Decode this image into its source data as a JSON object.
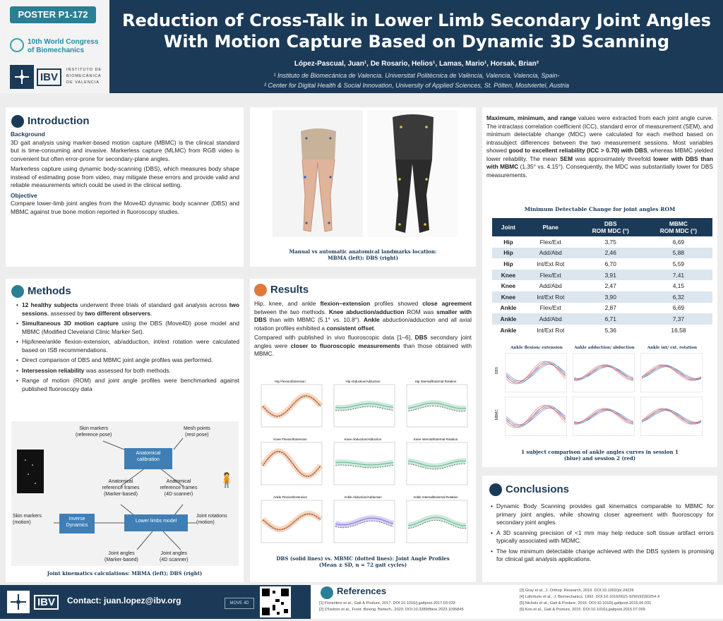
{
  "header": {
    "badge": "POSTER P1-172",
    "congress_line1": "10th World Congress",
    "congress_line2": "of Biomechanics",
    "ibv": "IBV",
    "ibv_small1": "INSTITUTO DE",
    "ibv_small2": "BIOMECÁNICA",
    "ibv_small3": "DE VALENCIA",
    "title_line1": "Reduction of Cross-Talk in Lower Limb Secondary Joint Angles",
    "title_line2": "With Motion Capture Based on Dynamic 3D Scanning",
    "authors": "López-Pascual, Juan¹, De Rosario, Helios¹, Lamas, Mario¹, Horsak, Brian²",
    "aff1": "¹ Instituto de Biomecánica de Valencia. Universitat Politècnica de València, Valencia, Valencia, Spain-",
    "aff2": "² Center for Digital Health & Social Innovation, University of Applied Sciences, St. Pölten, Mostviertel, Austria"
  },
  "intro": {
    "heading": "Introduction",
    "bg_label": "Background",
    "p1": "3D gait analysis using marker-based motion capture (MBMC) is the clinical standard but is time-consuming and invasive. Markerless capture (MLMC) from RGB video is convenient but often error-prone for secondary-plane angles.",
    "p2": "Markerless capture using dynamic body-scanning (DBS), which measures body shape instead of estimating pose from video, may mitigate these errors and provide valid and reliable measurements which could be used in the clinical setting.",
    "obj_label": "Objective",
    "p3": "Compare lower-limb joint angles from the Move4D dynamic body scanner (DBS) and MBMC against true bone motion reported in fluoroscopy studies."
  },
  "landmarks": {
    "caption1": "Manual vs automatic anatomical landmarks location:",
    "caption2": "MBMA (left); DBS (right)"
  },
  "methods": {
    "heading": "Methods",
    "b1_bold": "12 healthy subjects",
    "b1a": " underwent three trials of standard gait analysis across ",
    "b1_bold2": "two sessions",
    "b1b": ", assessed by ",
    "b1_bold3": "two different observers",
    "b1c": ".",
    "b2_bold": "Simultaneous 3D motion capture",
    "b2": " using the DBS (Move4D) pose model and MBMC (Modified Cleveland Clinic Marker Set).",
    "b3": "Hip/knee/ankle flexion-extension, ab/adduction, int/ext rotation were calculated based on ISB recommendations.",
    "b4": "Direct comparison of DBS and MBMC joint angle profiles was performed.",
    "b5_bold": "Intersession reliability",
    "b5": " was assessed for both methods.",
    "b6": "Range of motion (ROM) and joint angle profiles were benchmarked against published fluoroscopy data",
    "diag": {
      "skin_ref": "Skin markers\n(reference pose)",
      "mesh": "Mesh points\n(rest pose)",
      "anat_cal": "Anatomical\ncalibration",
      "arf_marker": "Anatomical\nreference frames\n(Marker-based)",
      "arf_scanner": "Anatomical\nreference frames\n(4D scanner)",
      "skin_motion": "Skin markers\n(motion)",
      "inverse": "Inverse\nDynamics",
      "lower_limb": "Lower limbs model",
      "joint_rot": "Joint rotations\n(motion)",
      "ja_marker": "Joint angles\n(Marker-based)",
      "ja_scanner": "Joint angles\n(4D scanner)"
    },
    "caption": "Joint kinematics calculations: MBMA (left); DBS (right)"
  },
  "results": {
    "heading": "Results",
    "t1": "Hip, knee, and ankle ",
    "t1b": "flexion–extension",
    "t1c": " profiles showed ",
    "t1d": "close agreement",
    "t1e": " between the two methods. ",
    "t1f": "Knee abduction/adduction",
    "t1g": " ROM was ",
    "t1h": "smaller with DBS",
    "t1i": " than with MBMC (5.1° vs. 10.8°). ",
    "t1j": "Ankle",
    "t1k": " abduction/adduction and all axial rotation profiles exhibited a ",
    "t1l": "consistent offset",
    "t1m": ".",
    "t2": "Compared with published in vivo fluoroscopic data [1–6], ",
    "t2b": "DBS",
    "t2c": " secondary joint angles were ",
    "t2d": "closer to fluoroscopic measurements",
    "t2e": " than those obtained with MBMC.",
    "grid_titles": [
      "Hip Flexion/Extension",
      "Hip Abduction/Adduction",
      "Hip Internal/External Rotation",
      "Knee Flexion/Extension",
      "Knee Abduction/Adduction",
      "Knee Internal/External Rotation",
      "Ankle Flexion/Extension",
      "Ankle Abduction/Adduction",
      "Ankle Internal/External Rotation"
    ],
    "caption1": "DBS (solid lines) vs. MBMC (dotted lines): Joint Angle Profiles",
    "caption2": "(Mean ± SD, n = 72 gait cycles)"
  },
  "stats": {
    "t1b": "Maximum, minimum, and range",
    "t1": " values were extracted from each joint angle curve. The intraclass correlation coefficient (ICC), standard error of measurement (SEM), and minimum detectable change (MDC) were calculated for each method based on intrasubject differences between the two measurement sessions. Most variables showed ",
    "t1c": "good to excellent reliability (ICC > 0.70) with DBS",
    "t1d": ", whereas MBMC yielded lower reliability. The mean ",
    "t1e": "SEM",
    "t1f": " was approximately threefold ",
    "t1g": "lower with DBS than with MBMC",
    "t1h": " (1.35° vs. 4.15°). Consequently, the MDC was substantially lower for DBS measurements."
  },
  "table": {
    "title": "Minimum Detectable Change for joint angles ROM",
    "headers": [
      "Joint",
      "Plane",
      "DBS\nROM MDC (°)",
      "MBMC\nROM MDC (°)"
    ],
    "rows": [
      [
        "Hip",
        "Flex/Ext",
        "3,75",
        "6,69"
      ],
      [
        "Hip",
        "Add/Abd",
        "2,46",
        "5,88"
      ],
      [
        "Hip",
        "Int/Ext Rot",
        "6,70",
        "5,59"
      ],
      [
        "Knee",
        "Flex/Ext",
        "3,91",
        "7,41"
      ],
      [
        "Knee",
        "Add/Abd",
        "2,47",
        "4,15"
      ],
      [
        "Knee",
        "Int/Ext Rot",
        "3,90",
        "6,32"
      ],
      [
        "Ankle",
        "Flex/Ext",
        "2,87",
        "6,69"
      ],
      [
        "Ankle",
        "Add/Abd",
        "6,71",
        "7,37"
      ],
      [
        "Ankle",
        "Int/Ext Rot",
        "5,36",
        "16,58"
      ]
    ]
  },
  "ankle": {
    "titles": [
      "Ankle flexion/ extension",
      "Ankle adduction/ abduction",
      "Ankle int/ ext. rotation"
    ],
    "row_labels": [
      "DBS",
      "MBMC"
    ],
    "caption1": "1 subject comparison of ankle angles curves in session 1",
    "caption2": "(blue) and session 2 (red)"
  },
  "conclusions": {
    "heading": "Conclusions",
    "c1": "Dynamic Body Scanning provides gait kinematics comparable to MBMC for primary joint angles, while showing closer agreement with fluoroscopy for secondary joint angles.",
    "c2": "A 3D scanning precision of <1 mm may help reduce soft tissue artifact errors typically associated with MDMC.",
    "c3": "The low minimum detectable change achieved with the DBS system is promising for clinical gait analysis applications."
  },
  "footer": {
    "contact": "Contact: juan.lopez@ibv.org",
    "ibv": "IBV",
    "move4d": "MOVE 4D",
    "refs_heading": "References",
    "refs_left": [
      "[1] Fiorentino et al., Gait & Posture, 2017. DOI:10.1016/j.gaitpost.2017.03.033",
      "[2] D'Isidoro et al., Front. Bioeng. Biotech., 2023. DOI:10.3389/fbioe.2023.1095845"
    ],
    "refs_right": [
      "[3] Gray et al., J. Orthop. Research, 2019. DOI:10.1002/jor.24226",
      "[4] Lafortune et al., J. Biomechanics, 1992. DOI:10.1016/0021-9290(92)90254-X",
      "[5] Nichols et al., Gait & Posture, 2016. DOI:10.1016/j.gaitpost.2016.06.031",
      "[6] Koo et al., Gait & Posture, 2015. DOI:10.1016/j.gaitpost.2015.07.009"
    ]
  },
  "colors": {
    "navy": "#1b3a57",
    "teal": "#2a7f95",
    "orange": "#e07a3a",
    "blue": "#3b78c4",
    "red": "#d64b4b",
    "green": "#5bb58c"
  }
}
